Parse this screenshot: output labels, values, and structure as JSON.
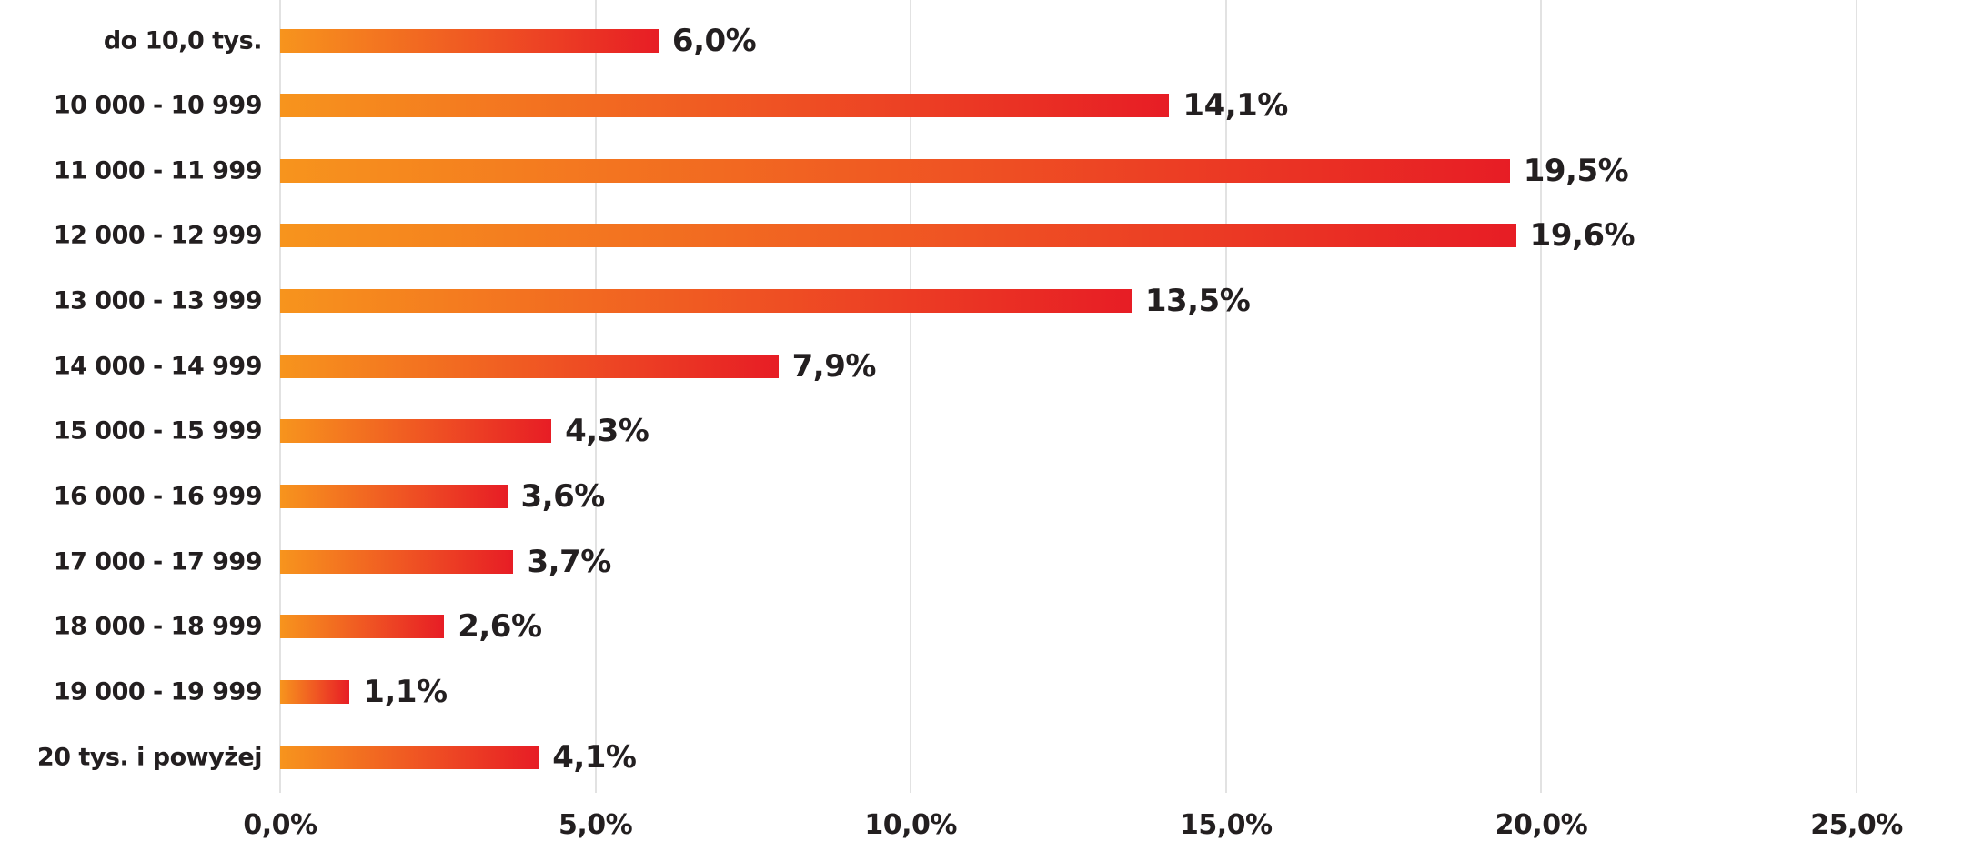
{
  "chart_data": {
    "type": "bar",
    "orientation": "horizontal",
    "title": "",
    "categories": [
      "do 10,0 tys.",
      "10 000 - 10 999",
      "11 000 - 11 999",
      "12 000 - 12 999",
      "13 000 - 13 999",
      "14 000 - 14 999",
      "15 000 - 15 999",
      "16 000 - 16 999",
      "17 000 - 17 999",
      "18 000 - 18 999",
      "19 000 - 19 999",
      "20 tys. i powyżej"
    ],
    "values": [
      6.0,
      14.1,
      19.5,
      19.6,
      13.5,
      7.9,
      4.3,
      3.6,
      3.7,
      2.6,
      1.1,
      4.1
    ],
    "value_labels": [
      "6,0%",
      "14,1%",
      "19,5%",
      "19,6%",
      "13,5%",
      "7,9%",
      "4,3%",
      "3,6%",
      "3,7%",
      "2,6%",
      "1,1%",
      "4,1%"
    ],
    "x_ticks": [
      "0,0%",
      "5,0%",
      "10,0%",
      "15,0%",
      "20,0%",
      "25,0%"
    ],
    "x_tick_values": [
      0,
      5,
      10,
      15,
      20,
      25
    ],
    "xlim": [
      0,
      25
    ],
    "grid": "vertical",
    "legend": "none",
    "colors": {
      "bar_gradient_start": "#F7941D",
      "bar_gradient_mid": "#EF5323",
      "bar_gradient_end": "#E71D25",
      "text": "#231F20",
      "gridline": "#E2E2E2",
      "background": "#FFFFFF"
    }
  }
}
